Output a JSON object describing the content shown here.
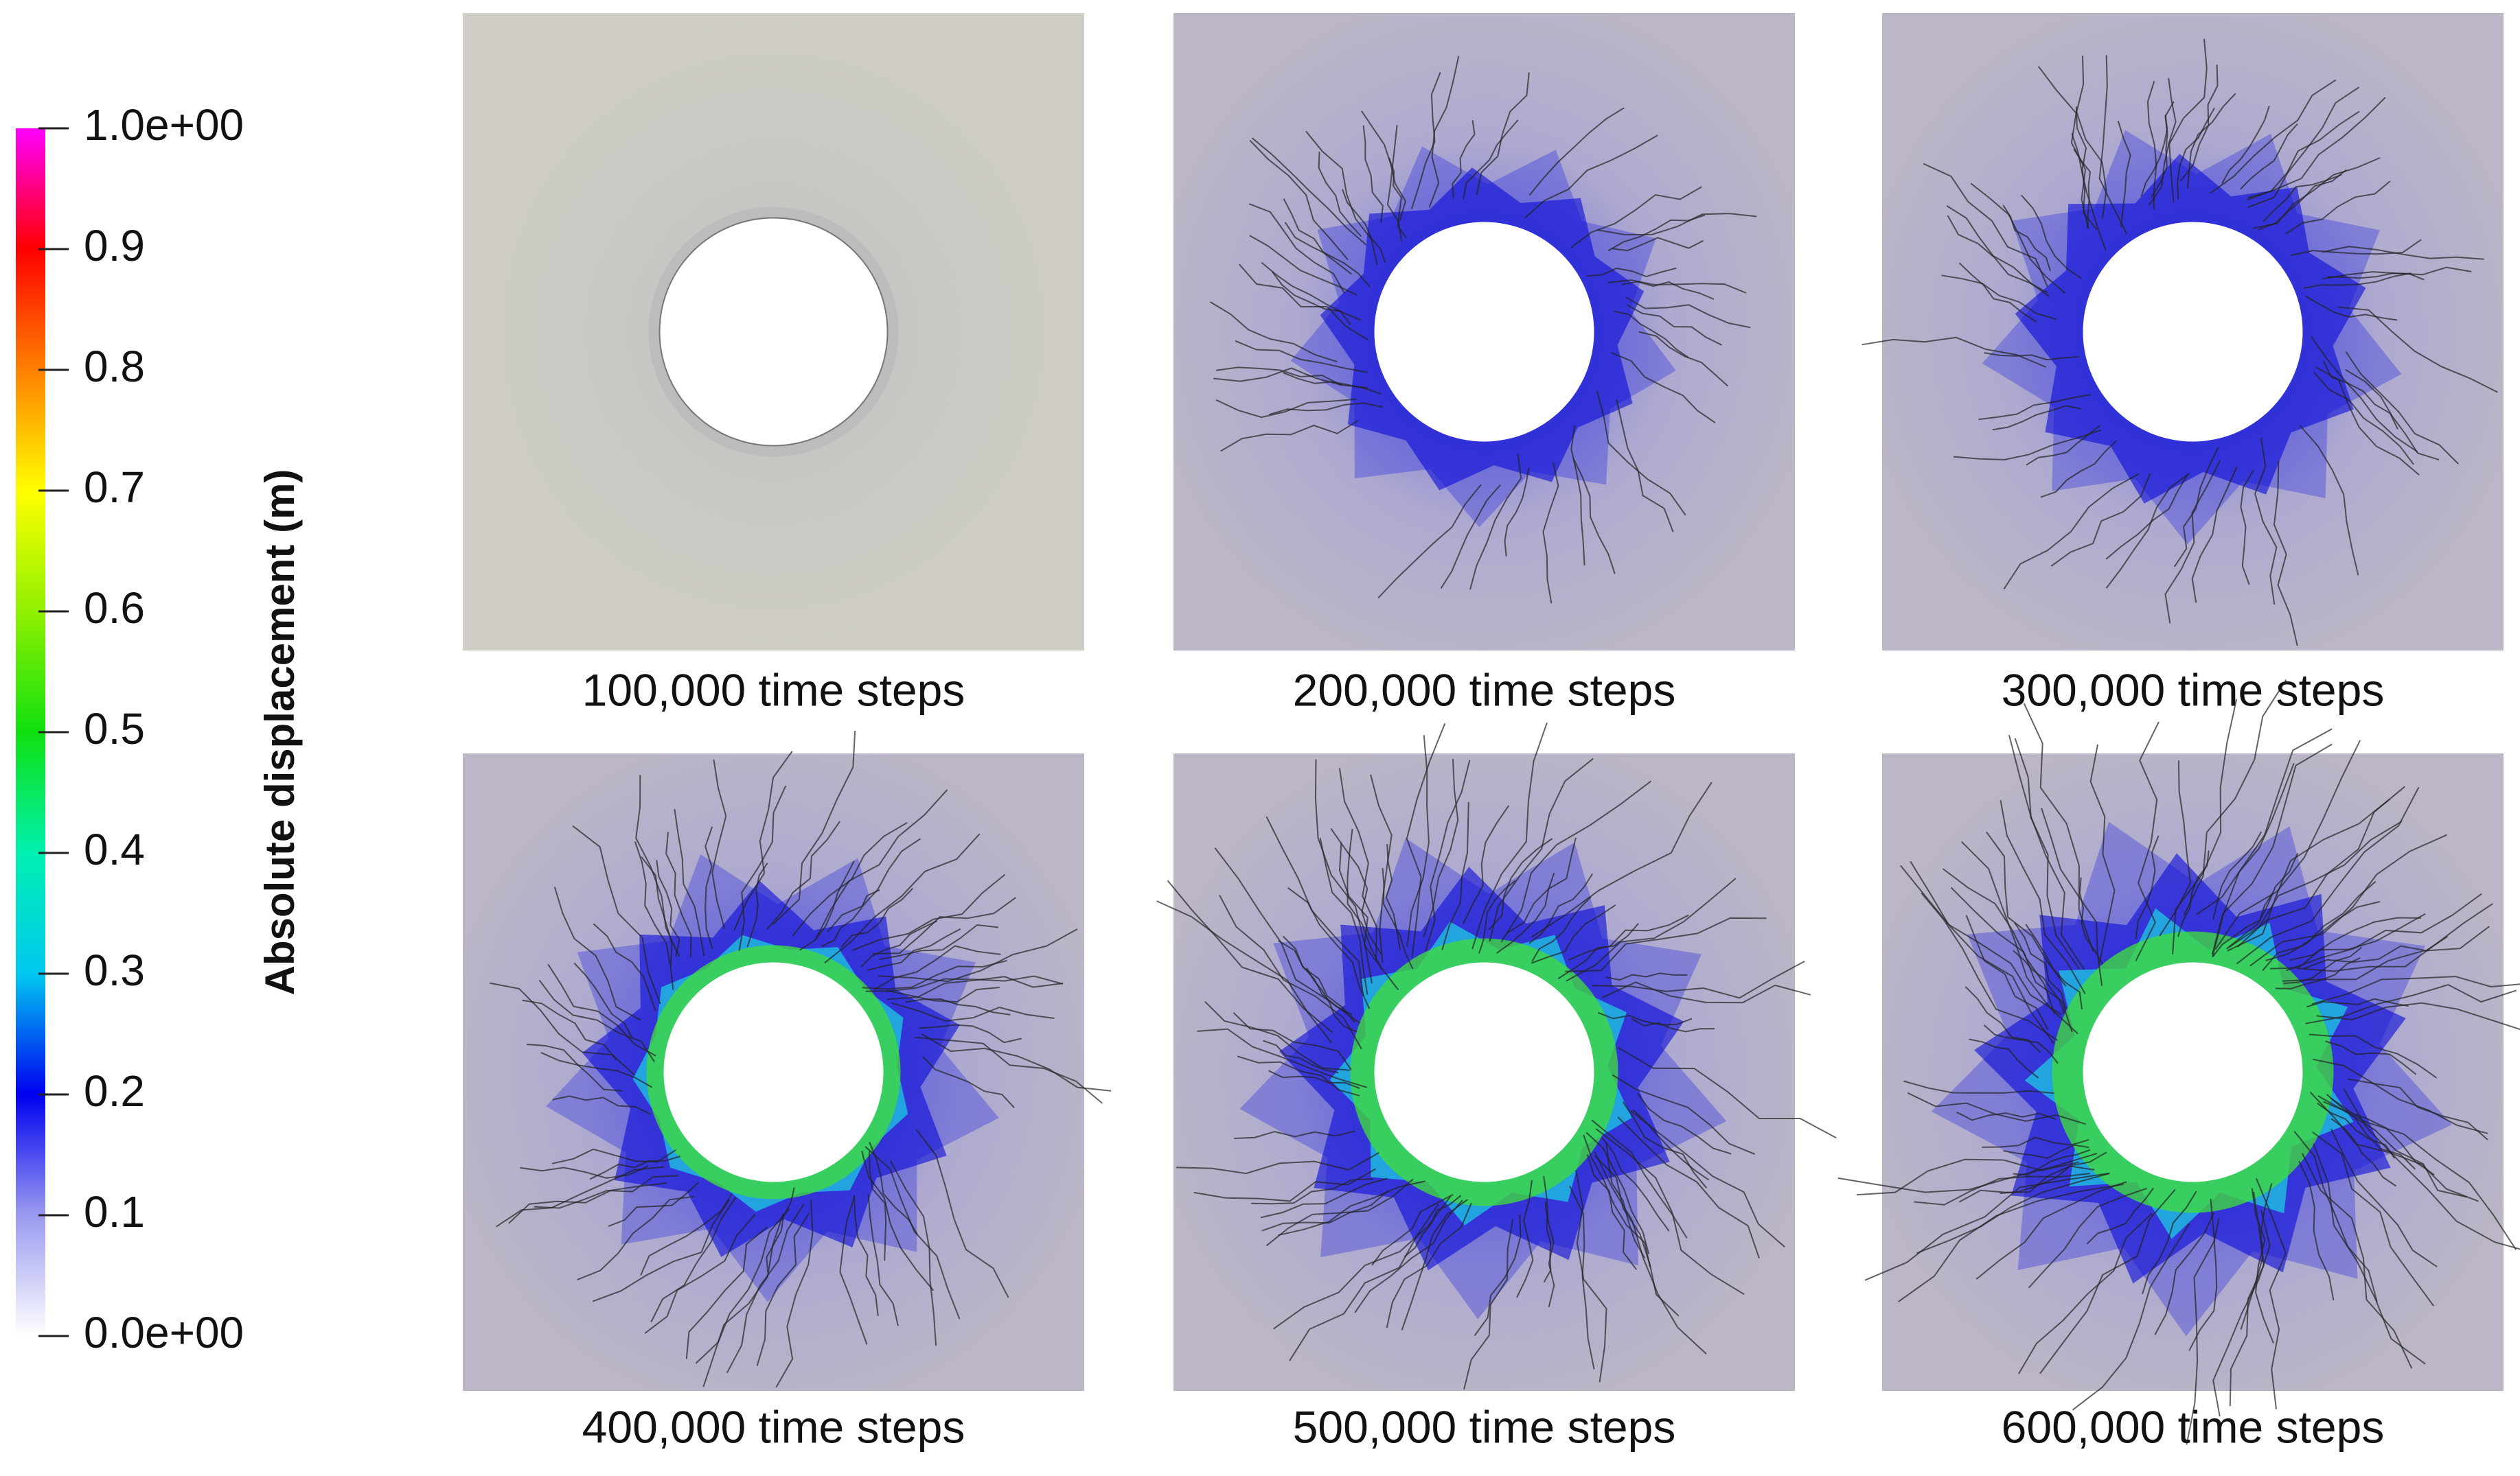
{
  "colorbar": {
    "title": "Absolute displacement (m)",
    "range": [
      0,
      1
    ],
    "ticks": [
      {
        "value": 1,
        "label": "1.0e+00"
      },
      0.9,
      0.8,
      0.7,
      0.6,
      0.5,
      0.4,
      0.3,
      0.2,
      0.1,
      {
        "value": 0,
        "label": "0.0e+00"
      }
    ]
  },
  "panels": [
    {
      "caption": "100,000 time steps"
    },
    {
      "caption": "200,000 time steps"
    },
    {
      "caption": "300,000 time steps"
    },
    {
      "caption": "400,000 time steps"
    },
    {
      "caption": "500,000 time steps"
    },
    {
      "caption": "600,000 time steps"
    }
  ]
}
